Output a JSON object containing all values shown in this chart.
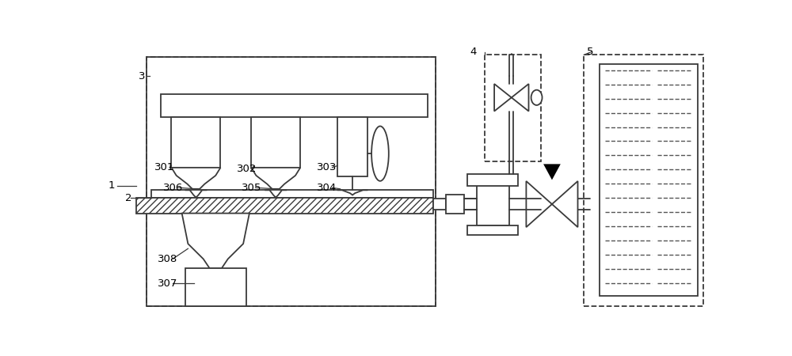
{
  "bg_color": "#ffffff",
  "line_color": "#3a3a3a",
  "fig_width": 10.0,
  "fig_height": 4.5,
  "dpi": 100
}
